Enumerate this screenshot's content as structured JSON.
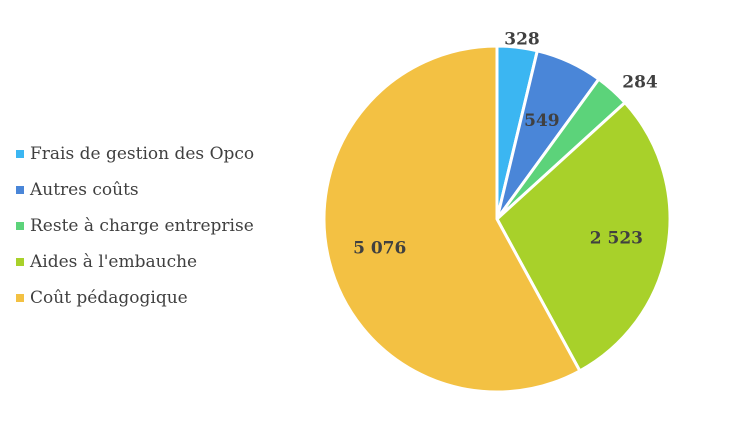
{
  "chart_data": {
    "type": "pie",
    "categories": [
      "Frais de gestion des Opco",
      "Autres coûts",
      "Reste à charge entreprise",
      "Aides à l'embauche",
      "Coût pédagogique"
    ],
    "values": [
      328,
      549,
      284,
      2523,
      5076
    ],
    "value_labels": [
      "328",
      "549",
      "284",
      "2 523",
      "5 076"
    ],
    "colors": [
      "#3bb6f2",
      "#4a86d8",
      "#5cd37a",
      "#a8d12a",
      "#f3c143"
    ],
    "start_angle": "12 o'clock",
    "direction": "clockwise",
    "legend_position": "left"
  }
}
